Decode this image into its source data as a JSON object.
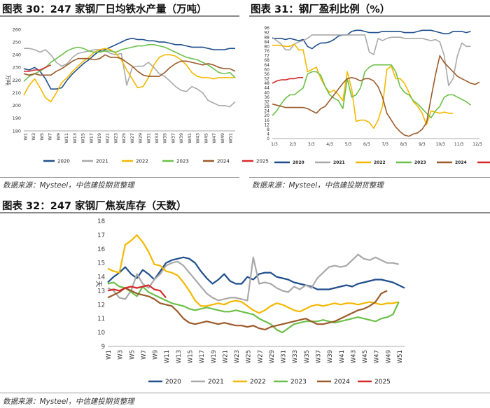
{
  "colors": {
    "2020": "#1f4e8c",
    "2021": "#a9a9a9",
    "2022": "#f5b800",
    "2023": "#6cc04a",
    "2024": "#9b5a2a",
    "2025": "#d42a2a"
  },
  "figures": {
    "f30": {
      "title": "图表 30：247 家钢厂日均铁水产量（万吨）",
      "source": "数据来源：Mysteel，中信建投期货整理"
    },
    "f31": {
      "title": "图表 31：钢厂盈利比例（%）",
      "source": "数据来源：Mysteel，中信建投期货整理"
    },
    "f32": {
      "title": "图表 32：247 家钢厂焦炭库存（天数）",
      "source": "数据来源：Mysteel，中信建投期货整理"
    }
  },
  "chart_data": [
    {
      "id": "f30",
      "type": "line",
      "title": "247家钢厂日均铁水产量",
      "ylabel": "万吨",
      "ylim": [
        180,
        260
      ],
      "yticks": [
        180,
        190,
        200,
        210,
        220,
        230,
        240,
        250,
        260
      ],
      "xticks": [
        "W1",
        "W3",
        "W5",
        "W7",
        "W9",
        "W11",
        "W13",
        "W15",
        "W17",
        "W19",
        "W21",
        "W23",
        "W25",
        "W27",
        "W29",
        "W31",
        "W33",
        "W35",
        "W37",
        "W39",
        "W41",
        "W43",
        "W45",
        "W47",
        "W49",
        "W51"
      ],
      "series": [
        {
          "name": "2020",
          "values": [
            229,
            228,
            230,
            227,
            221,
            213,
            213,
            214,
            220,
            225,
            229,
            233,
            236,
            240,
            243,
            244,
            246,
            248,
            250,
            252,
            253,
            252,
            252,
            251,
            251,
            250,
            250,
            249,
            248,
            248,
            247,
            246,
            246,
            246,
            245,
            244,
            244,
            244,
            245,
            245
          ]
        },
        {
          "name": "2021",
          "values": [
            245,
            245,
            244,
            242,
            244,
            240,
            234,
            231,
            233,
            238,
            241,
            242,
            243,
            244,
            244,
            243,
            241,
            240,
            241,
            216,
            230,
            231,
            231,
            234,
            230,
            225,
            223,
            219,
            215,
            212,
            211,
            215,
            213,
            210,
            204,
            202,
            200,
            200,
            199,
            203
          ]
        },
        {
          "name": "2022",
          "values": [
            208,
            216,
            221,
            214,
            206,
            203,
            210,
            218,
            222,
            227,
            231,
            235,
            238,
            242,
            244,
            245,
            244,
            241,
            236,
            228,
            221,
            214,
            215,
            222,
            232,
            238,
            240,
            240,
            239,
            236,
            232,
            226,
            223,
            222,
            222,
            221,
            222,
            222,
            222,
            222
          ]
        },
        {
          "name": "2023",
          "values": [
            219,
            223,
            225,
            227,
            230,
            234,
            237,
            240,
            243,
            245,
            246,
            245,
            243,
            242,
            242,
            243,
            243,
            242,
            244,
            245,
            246,
            247,
            247,
            248,
            248,
            247,
            246,
            244,
            242,
            240,
            238,
            237,
            236,
            234,
            232,
            229,
            226,
            225,
            226,
            222
          ]
        },
        {
          "name": "2024",
          "values": [
            225,
            224,
            225,
            224,
            224,
            224,
            227,
            229,
            232,
            235,
            237,
            237,
            237,
            236,
            237,
            240,
            238,
            238,
            237,
            234,
            231,
            227,
            224,
            223,
            223,
            223,
            226,
            230,
            233,
            235,
            235,
            234,
            233,
            232,
            233,
            232,
            230,
            229,
            229,
            227
          ]
        },
        {
          "name": "2025",
          "values": [
            227,
            227,
            228,
            228,
            230,
            232
          ]
        }
      ]
    },
    {
      "id": "f31",
      "type": "line",
      "title": "钢厂盈利比例",
      "ylabel": "",
      "ylim": [
        0,
        96
      ],
      "yticks": [
        0,
        4,
        8,
        12,
        16,
        20,
        24,
        28,
        32,
        36,
        40,
        44,
        48,
        52,
        56,
        60,
        64,
        68,
        72,
        76,
        80,
        84,
        88,
        92,
        96
      ],
      "xticks": [
        "1/3",
        "2/3",
        "3/3",
        "4/3",
        "5/3",
        "6/3",
        "7/3",
        "8/3",
        "9/3",
        "10/3",
        "11/3",
        "12/3"
      ],
      "series": [
        {
          "name": "2020",
          "values": [
            87,
            87,
            87,
            86,
            87,
            86,
            85,
            86,
            80,
            78,
            81,
            83,
            83,
            84,
            86,
            89,
            90,
            90,
            93,
            94,
            94,
            93,
            92,
            92,
            92,
            93,
            93,
            93,
            93,
            93,
            92,
            92,
            92,
            93,
            94,
            94,
            94,
            93,
            92,
            91,
            91,
            93,
            93,
            93,
            92,
            93
          ]
        },
        {
          "name": "2021",
          "values": [
            88,
            85,
            82,
            77,
            77,
            82,
            84,
            85,
            87,
            90,
            90,
            90,
            90,
            90,
            90,
            90,
            90,
            90,
            90,
            90,
            90,
            90,
            75,
            73,
            87,
            85,
            87,
            88,
            88,
            88,
            87,
            87,
            87,
            87,
            87,
            86,
            85,
            86,
            84,
            72,
            46,
            52,
            72,
            83,
            80,
            80
          ]
        },
        {
          "name": "2022",
          "values": [
            81,
            81,
            81,
            80,
            80,
            82,
            77,
            77,
            58,
            60,
            62,
            52,
            45,
            40,
            42,
            38,
            33,
            58,
            43,
            15,
            16,
            16,
            14,
            9,
            16,
            28,
            60,
            63,
            52,
            52,
            48,
            40,
            32,
            28,
            22,
            12,
            24,
            23,
            22,
            23,
            22,
            22
          ]
        },
        {
          "name": "2023",
          "values": [
            20,
            24,
            30,
            35,
            38,
            38,
            41,
            44,
            56,
            58,
            58,
            55,
            45,
            38,
            35,
            33,
            26,
            52,
            36,
            38,
            44,
            58,
            62,
            64,
            64,
            64,
            64,
            64,
            58,
            45,
            40,
            38,
            33,
            30,
            26,
            22,
            18,
            24,
            28,
            36,
            38,
            38,
            36,
            34,
            32,
            29
          ]
        },
        {
          "name": "2024",
          "values": [
            30,
            29,
            28,
            27,
            27,
            27,
            27,
            27,
            26,
            24,
            22,
            26,
            28,
            33,
            38,
            43,
            48,
            52,
            53,
            52,
            50,
            52,
            52,
            50,
            45,
            36,
            22,
            16,
            10,
            6,
            3,
            2,
            4,
            5,
            8,
            14,
            35,
            55,
            72,
            66,
            62,
            58,
            54,
            52,
            50,
            48,
            47,
            49
          ]
        },
        {
          "name": "2025",
          "values": [
            48,
            50,
            51,
            51,
            52,
            52,
            53,
            53
          ]
        }
      ]
    },
    {
      "id": "f32",
      "type": "line",
      "title": "247家钢厂焦炭库存",
      "ylabel": "天",
      "ylim": [
        9,
        18
      ],
      "yticks": [
        9,
        10,
        11,
        12,
        13,
        14,
        15,
        16,
        17,
        18
      ],
      "xticks": [
        "W1",
        "W3",
        "W5",
        "W7",
        "W9",
        "W11",
        "W13",
        "W15",
        "W17",
        "W19",
        "W21",
        "W23",
        "W25",
        "W27",
        "W29",
        "W31",
        "W33",
        "W35",
        "W37",
        "W39",
        "W41",
        "W43",
        "W45",
        "W47",
        "W49",
        "W51"
      ],
      "series": [
        {
          "name": "2020",
          "values": [
            13.6,
            14.0,
            14.3,
            14.7,
            14.2,
            13.9,
            14.5,
            14.2,
            13.8,
            14.4,
            15.0,
            15.2,
            15.3,
            15.4,
            15.3,
            15.0,
            14.4,
            13.9,
            13.5,
            13.8,
            14.2,
            13.7,
            13.5,
            13.5,
            14.0,
            13.8,
            14.2,
            14.3,
            14.3,
            14.0,
            13.9,
            13.8,
            13.6,
            13.5,
            13.4,
            13.3,
            13.1,
            13.1,
            13.1,
            13.2,
            13.3,
            13.4,
            13.3,
            13.5,
            13.6,
            13.7,
            13.8,
            13.8,
            13.7,
            13.6,
            13.4,
            13.2
          ]
        },
        {
          "name": "2021",
          "values": [
            13.2,
            13.0,
            12.5,
            12.4,
            13.0,
            14.2,
            13.5,
            13.2,
            13.8,
            14.2,
            14.8,
            15.0,
            15.1,
            14.8,
            14.3,
            13.8,
            13.3,
            12.8,
            12.5,
            12.3,
            12.4,
            12.5,
            12.5,
            12.4,
            12.3,
            15.4,
            13.5,
            13.6,
            13.5,
            13.2,
            13.0,
            12.9,
            13.3,
            13.1,
            13.4,
            13.2,
            13.9,
            14.3,
            14.7,
            14.8,
            14.7,
            14.8,
            15.2,
            15.6,
            15.3,
            15.2,
            15.4,
            15.2,
            15.0,
            15.0,
            14.9
          ]
        },
        {
          "name": "2022",
          "values": [
            14.6,
            14.4,
            14.3,
            16.3,
            16.6,
            17.0,
            16.5,
            15.8,
            14.9,
            14.8,
            14.4,
            14.3,
            14.1,
            13.6,
            13.0,
            12.3,
            11.9,
            11.9,
            12.0,
            12.1,
            12.0,
            12.2,
            12.3,
            12.2,
            11.9,
            11.6,
            11.4,
            11.6,
            11.9,
            12.1,
            12.0,
            11.8,
            11.6,
            11.5,
            11.7,
            11.9,
            12.0,
            11.9,
            12.0,
            12.1,
            12.0,
            12.1,
            12.1,
            12.0,
            12.1,
            12.2,
            12.1,
            12.0,
            12.1,
            12.1,
            12.2
          ]
        },
        {
          "name": "2023",
          "values": [
            13.5,
            13.6,
            13.3,
            13.2,
            12.9,
            12.6,
            13.3,
            12.9,
            12.7,
            12.5,
            12.3,
            12.1,
            12.0,
            11.9,
            11.7,
            11.6,
            11.7,
            11.8,
            11.7,
            11.6,
            11.5,
            11.5,
            11.6,
            11.5,
            11.4,
            11.3,
            11.0,
            10.8,
            10.6,
            10.2,
            10.0,
            10.3,
            10.6,
            10.7,
            10.8,
            10.8,
            10.8,
            10.9,
            10.8,
            10.7,
            10.8,
            10.9,
            11.0,
            11.1,
            11.0,
            10.9,
            10.8,
            11.0,
            11.1,
            11.3,
            12.2
          ]
        },
        {
          "name": "2024",
          "values": [
            12.5,
            12.7,
            12.9,
            13.2,
            13.0,
            12.8,
            12.7,
            12.6,
            12.4,
            12.1,
            12.0,
            11.9,
            11.5,
            11.0,
            10.7,
            10.6,
            10.7,
            10.8,
            10.7,
            10.6,
            10.7,
            10.6,
            10.5,
            10.5,
            10.4,
            10.5,
            10.3,
            10.2,
            10.4,
            10.5,
            10.6,
            10.7,
            10.8,
            10.9,
            11.0,
            10.8,
            10.6,
            10.6,
            10.7,
            10.8,
            11.0,
            11.2,
            11.4,
            11.6,
            11.7,
            11.9,
            12.2,
            12.8,
            13.0
          ]
        },
        {
          "name": "2025",
          "values": [
            13.0,
            13.1,
            13.0,
            13.2,
            13.3,
            13.2,
            13.3,
            13.4,
            13.1,
            13.0,
            12.5
          ]
        }
      ]
    }
  ]
}
